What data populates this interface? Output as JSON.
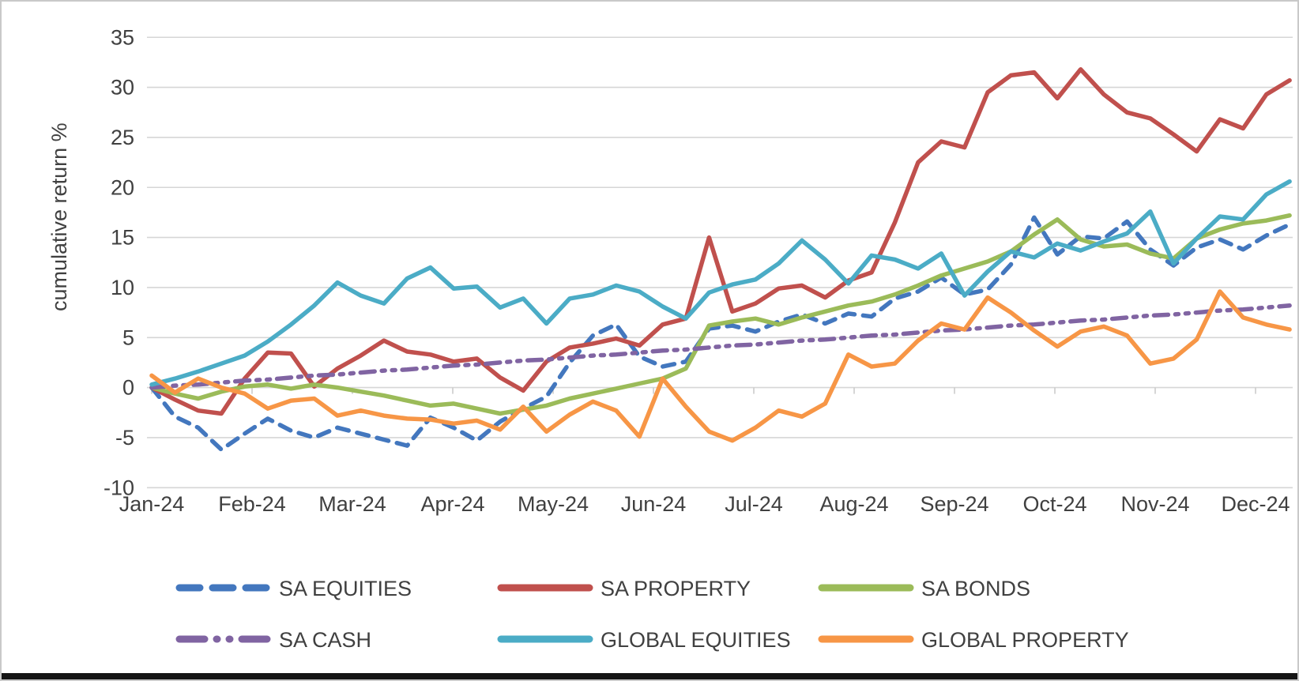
{
  "chart_data": {
    "type": "line",
    "title": "",
    "ylabel": "cumulative return %",
    "xlabel": "",
    "ylim": [
      -10,
      35
    ],
    "ytick_step": 5,
    "yticks": [
      35,
      30,
      25,
      20,
      15,
      10,
      5,
      0,
      -5,
      -10
    ],
    "x_tick_labels": [
      "Jan-24",
      "Feb-24",
      "Mar-24",
      "Apr-24",
      "May-24",
      "Jun-24",
      "Jul-24",
      "Aug-24",
      "Sep-24",
      "Oct-24",
      "Nov-24",
      "Dec-24"
    ],
    "grid": "horizontal",
    "legend_position": "bottom",
    "x_unit": "weekly points, Jan 2024 to early Dec 2024",
    "points_per_series": 50,
    "series": [
      {
        "name": "SA EQUITIES",
        "color": "#4377BE",
        "style": "dashed",
        "values": [
          0,
          -2.9,
          -4.0,
          -6.2,
          -4.6,
          -3.1,
          -4.3,
          -5.0,
          -4.0,
          -4.6,
          -5.2,
          -5.8,
          -3.0,
          -4.0,
          -5.3,
          -3.4,
          -2.1,
          -0.9,
          2.5,
          5.2,
          6.3,
          3.1,
          2.1,
          2.6,
          5.9,
          6.2,
          5.6,
          6.6,
          7.3,
          6.4,
          7.4,
          7.1,
          8.9,
          9.6,
          11.0,
          9.3,
          9.8,
          12.3,
          17.0,
          13.3,
          15.1,
          14.9,
          16.6,
          13.8,
          12.2,
          14.0,
          14.8,
          13.8,
          15.2,
          16.3
        ]
      },
      {
        "name": "SA PROPERTY",
        "color": "#C0504D",
        "style": "solid",
        "values": [
          0,
          -1.2,
          -2.3,
          -2.6,
          0.9,
          3.5,
          3.4,
          0.1,
          1.9,
          3.2,
          4.7,
          3.6,
          3.3,
          2.6,
          2.9,
          1.0,
          -0.3,
          2.6,
          4.0,
          4.4,
          4.9,
          4.2,
          6.3,
          6.9,
          15.0,
          7.6,
          8.4,
          9.9,
          10.2,
          9.0,
          10.7,
          11.5,
          16.5,
          22.5,
          24.6,
          24.0,
          29.5,
          31.2,
          31.5,
          28.9,
          31.8,
          29.3,
          27.5,
          26.9,
          25.3,
          23.6,
          26.8,
          25.9,
          29.3,
          30.7
        ]
      },
      {
        "name": "SA BONDS",
        "color": "#9BBB59",
        "style": "solid",
        "values": [
          0,
          -0.6,
          -1.1,
          -0.4,
          0.1,
          0.3,
          -0.1,
          0.3,
          0.0,
          -0.4,
          -0.8,
          -1.3,
          -1.8,
          -1.6,
          -2.1,
          -2.6,
          -2.2,
          -1.8,
          -1.1,
          -0.6,
          -0.1,
          0.4,
          0.9,
          1.9,
          6.2,
          6.6,
          6.9,
          6.3,
          7.0,
          7.6,
          8.2,
          8.6,
          9.3,
          10.2,
          11.2,
          11.9,
          12.6,
          13.6,
          15.3,
          16.8,
          14.8,
          14.1,
          14.3,
          13.4,
          12.9,
          14.9,
          15.8,
          16.4,
          16.7,
          17.2
        ]
      },
      {
        "name": "SA CASH",
        "color": "#8064A2",
        "style": "dash-dot",
        "values": [
          0,
          0.2,
          0.3,
          0.5,
          0.7,
          0.8,
          1.0,
          1.2,
          1.3,
          1.5,
          1.7,
          1.8,
          2.0,
          2.2,
          2.3,
          2.5,
          2.7,
          2.8,
          3.0,
          3.2,
          3.3,
          3.5,
          3.7,
          3.8,
          4.0,
          4.2,
          4.3,
          4.5,
          4.7,
          4.8,
          5.0,
          5.2,
          5.3,
          5.5,
          5.7,
          5.8,
          6.0,
          6.2,
          6.3,
          6.5,
          6.7,
          6.8,
          7.0,
          7.2,
          7.3,
          7.5,
          7.7,
          7.8,
          8.0,
          8.2
        ]
      },
      {
        "name": "GLOBAL EQUITIES",
        "color": "#4BACC6",
        "style": "solid",
        "values": [
          0.3,
          0.9,
          1.6,
          2.4,
          3.2,
          4.6,
          6.3,
          8.2,
          10.5,
          9.2,
          8.4,
          10.9,
          12.0,
          9.9,
          10.1,
          8.0,
          8.9,
          6.4,
          8.9,
          9.3,
          10.2,
          9.6,
          8.1,
          6.9,
          9.5,
          10.3,
          10.8,
          12.4,
          14.7,
          12.8,
          10.4,
          13.2,
          12.8,
          11.9,
          13.4,
          9.2,
          11.6,
          13.6,
          13.0,
          14.4,
          13.7,
          14.6,
          15.4,
          17.6,
          12.4,
          14.9,
          17.1,
          16.8,
          19.3,
          20.6
        ]
      },
      {
        "name": "GLOBAL PROPERTY",
        "color": "#F79646",
        "style": "solid",
        "values": [
          1.2,
          -0.5,
          0.9,
          0.0,
          -0.6,
          -2.1,
          -1.3,
          -1.1,
          -2.8,
          -2.3,
          -2.8,
          -3.1,
          -3.2,
          -3.6,
          -3.3,
          -4.2,
          -1.9,
          -4.4,
          -2.7,
          -1.4,
          -2.3,
          -4.9,
          0.9,
          -1.9,
          -4.4,
          -5.3,
          -4.0,
          -2.3,
          -2.9,
          -1.6,
          3.3,
          2.1,
          2.4,
          4.7,
          6.4,
          5.8,
          9.0,
          7.5,
          5.7,
          4.1,
          5.6,
          6.1,
          5.2,
          2.4,
          2.9,
          4.8,
          9.6,
          7.0,
          6.3,
          5.8
        ]
      }
    ],
    "legend_rows": [
      [
        "SA EQUITIES",
        "SA PROPERTY",
        "SA BONDS"
      ],
      [
        "SA CASH",
        "GLOBAL EQUITIES",
        "GLOBAL PROPERTY"
      ]
    ]
  }
}
